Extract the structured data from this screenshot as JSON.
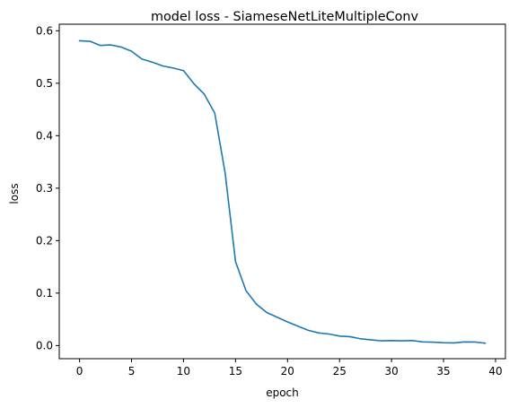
{
  "chart_data": {
    "type": "line",
    "title": "model loss - SiameseNetLiteMultipleConv",
    "xlabel": "epoch",
    "ylabel": "loss",
    "xlim": [
      -1.95,
      40.95
    ],
    "ylim": [
      -0.025,
      0.6125
    ],
    "xticks": [
      0,
      5,
      10,
      15,
      20,
      25,
      30,
      35,
      40
    ],
    "yticks": [
      0.0,
      0.1,
      0.2,
      0.3,
      0.4,
      0.5,
      0.6
    ],
    "xtick_labels": [
      "0",
      "5",
      "10",
      "15",
      "20",
      "25",
      "30",
      "35",
      "40"
    ],
    "ytick_labels": [
      "0.0",
      "0.1",
      "0.2",
      "0.3",
      "0.4",
      "0.5",
      "0.6"
    ],
    "grid": false,
    "legend": "none",
    "series": [
      {
        "color": "#1f77b4",
        "x": [
          0,
          1,
          2,
          3,
          4,
          5,
          6,
          7,
          8,
          9,
          10,
          11,
          12,
          13,
          14,
          15,
          16,
          17,
          18,
          19,
          20,
          21,
          22,
          23,
          24,
          25,
          26,
          27,
          28,
          29,
          30,
          31,
          32,
          33,
          34,
          35,
          36,
          37,
          38,
          39
        ],
        "y": [
          0.581,
          0.58,
          0.572,
          0.573,
          0.569,
          0.561,
          0.546,
          0.54,
          0.533,
          0.529,
          0.524,
          0.499,
          0.479,
          0.443,
          0.329,
          0.16,
          0.105,
          0.079,
          0.063,
          0.054,
          0.045,
          0.037,
          0.029,
          0.024,
          0.022,
          0.018,
          0.017,
          0.013,
          0.011,
          0.009,
          0.0095,
          0.009,
          0.0095,
          0.007,
          0.0065,
          0.0055,
          0.005,
          0.007,
          0.0068,
          0.0045
        ]
      }
    ]
  }
}
